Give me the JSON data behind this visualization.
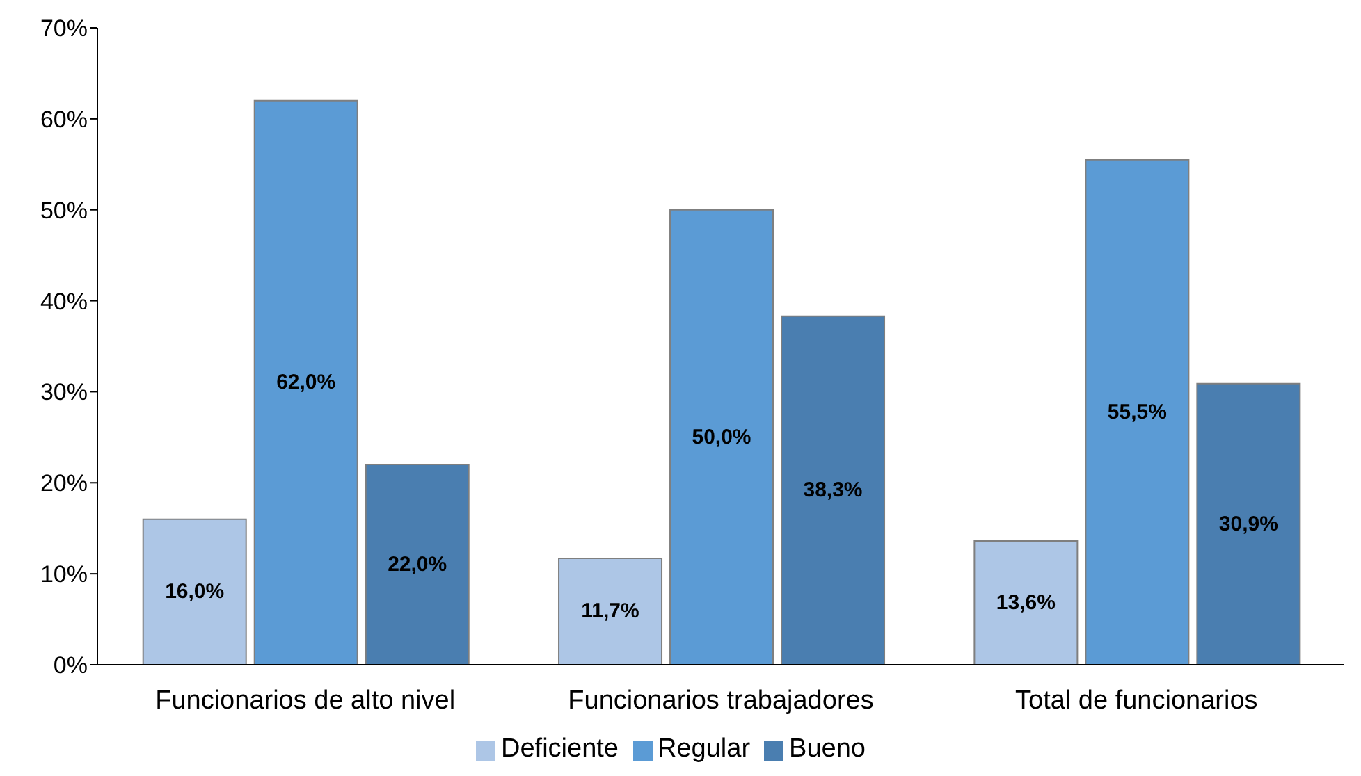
{
  "chart_data": {
    "type": "bar",
    "categories": [
      "Funcionarios de alto nivel",
      "Funcionarios trabajadores",
      "Total de funcionarios"
    ],
    "series": [
      {
        "name": "Deficiente",
        "color": "#adc6e6",
        "values": [
          16.0,
          11.7,
          13.6
        ],
        "value_labels": [
          "16,0%",
          "11,7%",
          "13,6%"
        ]
      },
      {
        "name": "Regular",
        "color": "#5b9bd5",
        "values": [
          62.0,
          50.0,
          55.5
        ],
        "value_labels": [
          "62,0%",
          "50,0%",
          "55,5%"
        ]
      },
      {
        "name": "Bueno",
        "color": "#4a7eb0",
        "values": [
          22.0,
          38.3,
          30.9
        ],
        "value_labels": [
          "22,0%",
          "38,3%",
          "30,9%"
        ]
      }
    ],
    "ylim": [
      0,
      70
    ],
    "yticks": [
      {
        "value": 0,
        "label": "0%"
      },
      {
        "value": 10,
        "label": "10%"
      },
      {
        "value": 20,
        "label": "20%"
      },
      {
        "value": 30,
        "label": "30%"
      },
      {
        "value": 40,
        "label": "40%"
      },
      {
        "value": 50,
        "label": "50%"
      },
      {
        "value": 60,
        "label": "60%"
      },
      {
        "value": 70,
        "label": "70%"
      }
    ],
    "grid": false,
    "legend": "bottom"
  }
}
